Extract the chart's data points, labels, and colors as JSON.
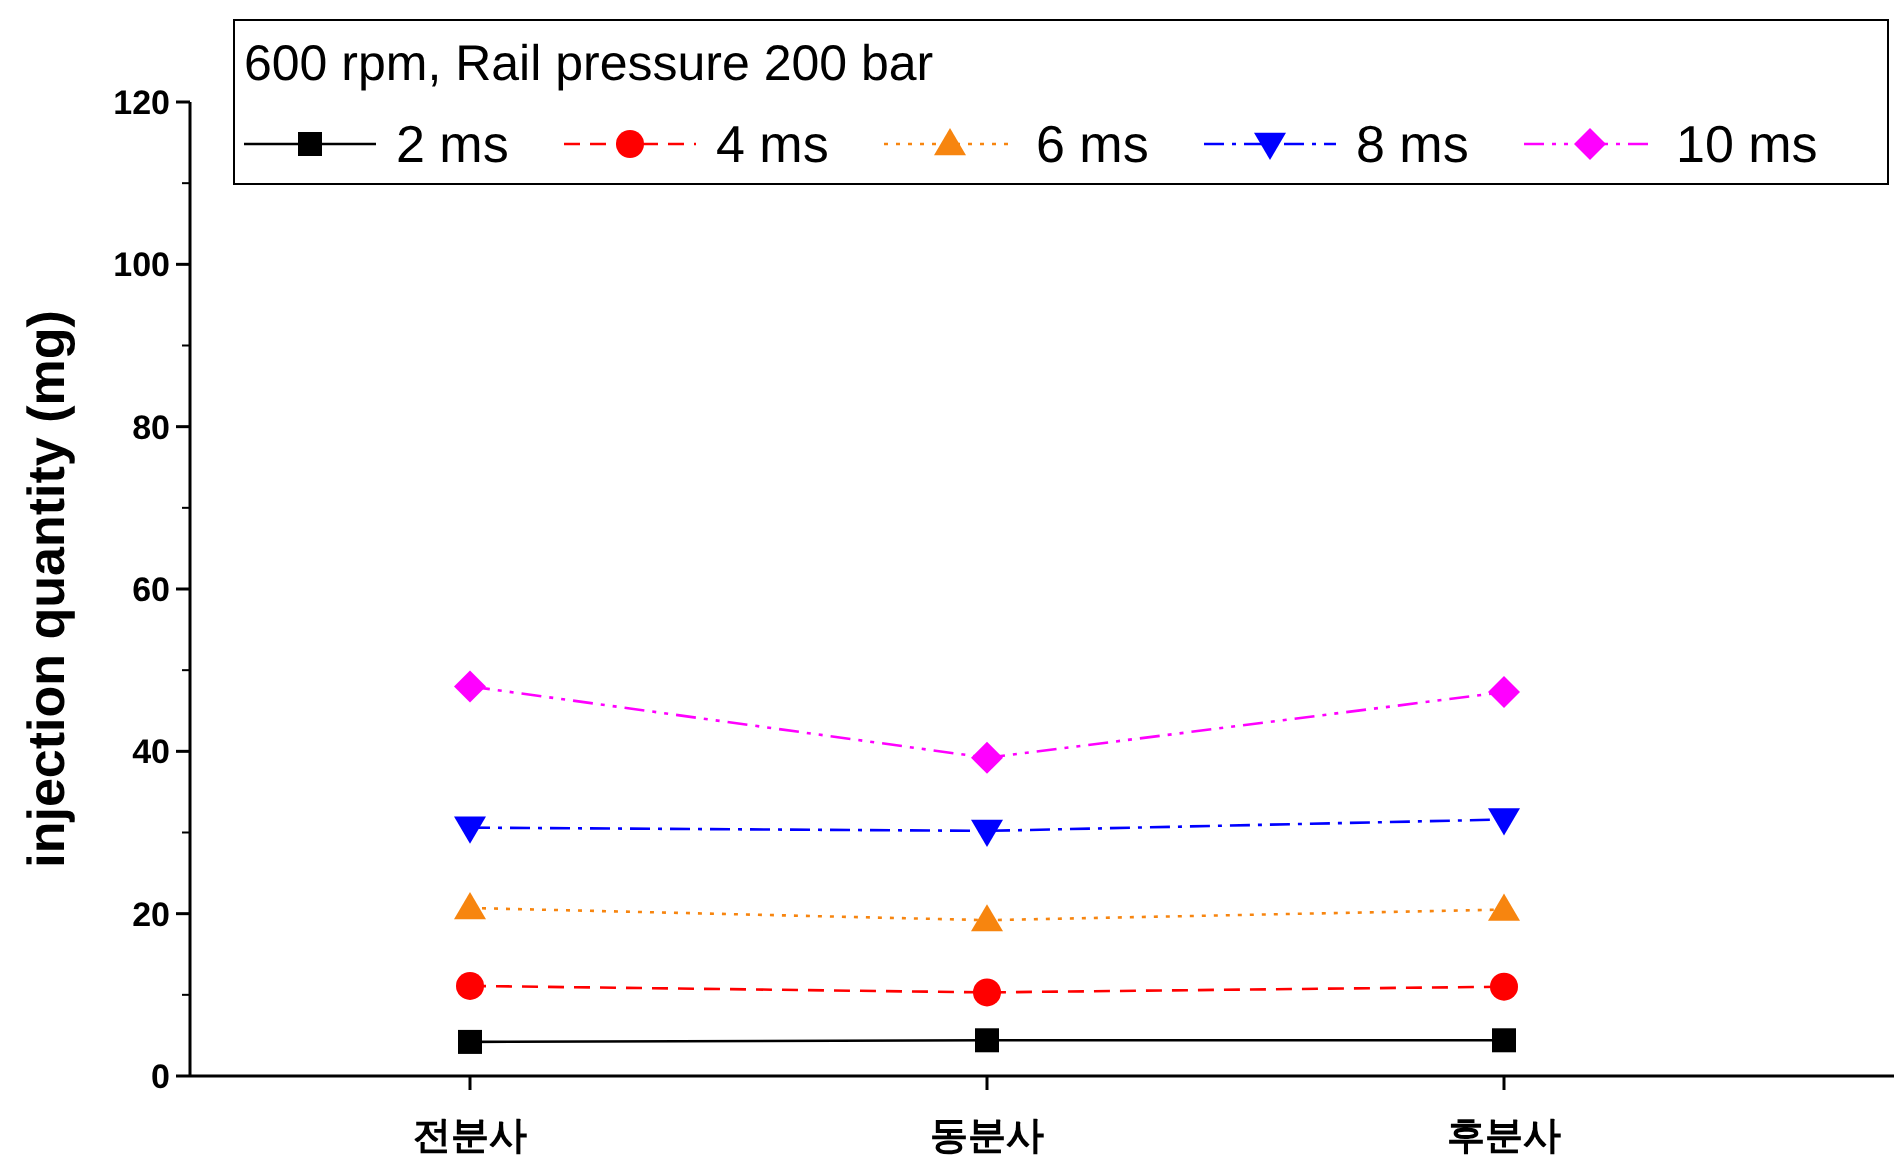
{
  "chart_data": {
    "type": "line",
    "ylabel": "injection quantity (mg)",
    "legend_title": "600 rpm, Rail pressure 200 bar",
    "legend": "top",
    "categories": [
      "전분사",
      "동분사",
      "후분사"
    ],
    "ylim": [
      0,
      120
    ],
    "yticks": [
      0,
      20,
      40,
      60,
      80,
      100,
      120
    ],
    "series": [
      {
        "name": "2 ms",
        "color": "#000000",
        "marker": "square",
        "line_style": "solid",
        "values": [
          4.2,
          4.4,
          4.4
        ]
      },
      {
        "name": "4 ms",
        "color": "#ff0000",
        "marker": "circle",
        "line_style": "dashed",
        "values": [
          11.1,
          10.3,
          11.0
        ]
      },
      {
        "name": "6 ms",
        "color": "#f7850f",
        "marker": "triangle",
        "line_style": "dotted",
        "values": [
          20.7,
          19.2,
          20.5
        ]
      },
      {
        "name": "8 ms",
        "color": "#0000ff",
        "marker": "triangle_down",
        "line_style": "dashdot",
        "values": [
          30.6,
          30.2,
          31.6
        ]
      },
      {
        "name": "10 ms",
        "color": "#ff00ff",
        "marker": "diamond",
        "line_style": "dashdotdot",
        "values": [
          48.0,
          39.2,
          47.3
        ]
      }
    ]
  }
}
